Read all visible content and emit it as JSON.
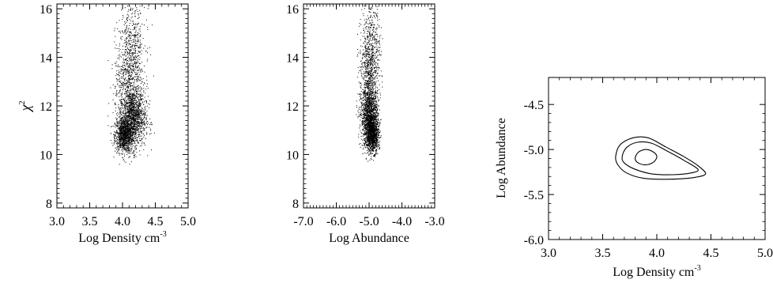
{
  "chart_data": [
    {
      "type": "scatter",
      "xlabel": "Log Density cm",
      "xlabel_sup": "-3",
      "ylabel": "χ",
      "ylabel_sup": "2",
      "xlim": [
        3.0,
        5.0
      ],
      "ylim": [
        7.8,
        16.2
      ],
      "xticks": [
        3.0,
        3.5,
        4.0,
        4.5,
        5.0
      ],
      "xtick_labels": [
        "3.0",
        "3.5",
        "4.0",
        "4.5",
        "5.0"
      ],
      "yticks": [
        8,
        10,
        12,
        14,
        16
      ],
      "ytick_labels": [
        "8",
        "10",
        "12",
        "14",
        "16"
      ],
      "grid": false,
      "point_color": "#000000",
      "density_clusters": [
        {
          "x_center": 4.02,
          "y_center": 10.8,
          "x_spread": 0.07,
          "y_spread": 0.35,
          "points": 900
        },
        {
          "x_center": 4.15,
          "y_center": 11.5,
          "x_spread": 0.1,
          "y_spread": 0.6,
          "points": 1300
        },
        {
          "x_center": 4.1,
          "y_center": 13.0,
          "x_spread": 0.11,
          "y_spread": 1.0,
          "points": 700
        },
        {
          "x_center": 4.15,
          "y_center": 14.8,
          "x_spread": 0.1,
          "y_spread": 0.9,
          "points": 350
        }
      ],
      "x_range_of_points": [
        3.75,
        4.5
      ],
      "y_range_of_points": [
        9.6,
        16.2
      ]
    },
    {
      "type": "scatter",
      "xlabel": "Log Abundance",
      "xlim": [
        -7.0,
        -3.0
      ],
      "ylim": [
        7.8,
        16.2
      ],
      "xticks": [
        -7.0,
        -6.0,
        -5.0,
        -4.0,
        -3.0
      ],
      "xtick_labels": [
        "-7.0",
        "-6.0",
        "-5.0",
        "-4.0",
        "-3.0"
      ],
      "yticks": [
        8,
        10,
        12,
        14,
        16
      ],
      "ytick_labels": [
        "8",
        "10",
        "12",
        "14",
        "16"
      ],
      "grid": false,
      "point_color": "#000000",
      "density_clusters": [
        {
          "x_center": -4.9,
          "y_center": 10.8,
          "x_spread": 0.09,
          "y_spread": 0.35,
          "points": 900
        },
        {
          "x_center": -5.0,
          "y_center": 11.5,
          "x_spread": 0.13,
          "y_spread": 0.6,
          "points": 1300
        },
        {
          "x_center": -5.0,
          "y_center": 13.0,
          "x_spread": 0.15,
          "y_spread": 1.0,
          "points": 700
        },
        {
          "x_center": -4.95,
          "y_center": 14.8,
          "x_spread": 0.14,
          "y_spread": 0.9,
          "points": 350
        }
      ],
      "x_range_of_points": [
        -5.4,
        -4.6
      ],
      "y_range_of_points": [
        9.6,
        16.2
      ]
    },
    {
      "type": "contour",
      "xlabel": "Log Density cm",
      "xlabel_sup": "-3",
      "ylabel": "Log Abundance",
      "xlim": [
        3.0,
        5.0
      ],
      "ylim": [
        -6.0,
        -4.2
      ],
      "xticks": [
        3.0,
        3.5,
        4.0,
        4.5,
        5.0
      ],
      "xtick_labels": [
        "3.0",
        "3.5",
        "4.0",
        "4.5",
        "5.0"
      ],
      "yticks": [
        -6.0,
        -5.5,
        -5.0,
        -4.5
      ],
      "ytick_labels": [
        "-6.0",
        "-5.5",
        "-5.0",
        "-4.5"
      ],
      "grid": false,
      "line_color": "#000000",
      "contours": [
        {
          "level": "inner",
          "points": [
            [
              3.8,
              -5.1
            ],
            [
              3.83,
              -5.03
            ],
            [
              3.9,
              -5.0
            ],
            [
              3.97,
              -5.03
            ],
            [
              4.0,
              -5.08
            ],
            [
              3.97,
              -5.14
            ],
            [
              3.9,
              -5.17
            ],
            [
              3.83,
              -5.15
            ],
            [
              3.8,
              -5.1
            ]
          ]
        },
        {
          "level": "middle",
          "points": [
            [
              3.68,
              -5.08
            ],
            [
              3.72,
              -4.98
            ],
            [
              3.82,
              -4.92
            ],
            [
              3.95,
              -4.93
            ],
            [
              4.1,
              -5.02
            ],
            [
              4.25,
              -5.12
            ],
            [
              4.38,
              -5.22
            ],
            [
              4.32,
              -5.26
            ],
            [
              4.15,
              -5.28
            ],
            [
              3.95,
              -5.27
            ],
            [
              3.8,
              -5.22
            ],
            [
              3.7,
              -5.15
            ],
            [
              3.68,
              -5.08
            ]
          ]
        },
        {
          "level": "outer",
          "points": [
            [
              3.62,
              -5.08
            ],
            [
              3.66,
              -4.95
            ],
            [
              3.78,
              -4.87
            ],
            [
              3.92,
              -4.87
            ],
            [
              4.08,
              -4.97
            ],
            [
              4.25,
              -5.08
            ],
            [
              4.38,
              -5.18
            ],
            [
              4.45,
              -5.27
            ],
            [
              4.35,
              -5.31
            ],
            [
              4.12,
              -5.33
            ],
            [
              3.88,
              -5.32
            ],
            [
              3.72,
              -5.26
            ],
            [
              3.64,
              -5.17
            ],
            [
              3.62,
              -5.08
            ]
          ]
        }
      ]
    }
  ]
}
